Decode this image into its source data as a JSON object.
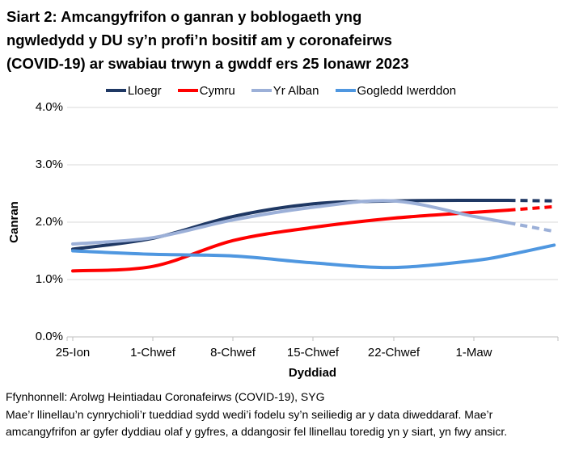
{
  "title_lines": [
    "Siart 2: Amcangyfrifon o ganran y boblogaeth yng",
    "ngwledydd y DU sy’n profi’n bositif am y coronafeirws",
    "(COVID-19) ar swabiau trwyn a gwddf ers 25 Ionawr 2023"
  ],
  "footer": {
    "source": "Ffynhonnell: Arolwg Heintiadau Coronafeirws (COVID-19), SYG",
    "note_lines": [
      "Mae’r llinellau’n cynrychioli’r tueddiad sydd wedi’i fodelu sy’n seiliedig ar y data diweddaraf. Mae’r",
      "amcangyfrifon ar gyfer dyddiau olaf y gyfres, a ddangosir fel llinellau toredig yn y siart, yn fwy ansicr."
    ]
  },
  "chart_data": {
    "type": "line",
    "title": "Siart 2: Amcangyfrifon o ganran y boblogaeth yng ngwledydd y DU sy’n profi’n bositif am y coronafeirws (COVID-19) ar swabiau trwyn a gwddf ers 25 Ionawr 2023",
    "xlabel": "Dyddiad",
    "ylabel": "Canran",
    "ylim": [
      0.0,
      4.0
    ],
    "yticks": [
      "0.0%",
      "1.0%",
      "2.0%",
      "3.0%",
      "4.0%"
    ],
    "ytick_values": [
      0,
      1,
      2,
      3,
      4
    ],
    "xticks": [
      "25-Ion",
      "1-Chwef",
      "8-Chwef",
      "15-Chwef",
      "22-Chwef",
      "1-Maw"
    ],
    "xtick_days": [
      0,
      7,
      14,
      21,
      28,
      35
    ],
    "x_days": [
      0,
      7,
      14,
      21,
      28,
      35,
      38,
      42
    ],
    "grid": "horizontal",
    "legend_position": "top",
    "grid_color": "#D9D9D9",
    "axis_color": "#BFBFBF",
    "series": [
      {
        "name": "Lloegr",
        "color": "#1F3864",
        "values": [
          1.53,
          1.72,
          2.1,
          2.32,
          2.37,
          2.38,
          2.38,
          2.37
        ],
        "dash_from_index": 6
      },
      {
        "name": "Cymru",
        "color": "#FF0000",
        "values": [
          1.15,
          1.23,
          1.68,
          1.91,
          2.07,
          2.17,
          2.21,
          2.27
        ],
        "dash_from_index": 6
      },
      {
        "name": "Yr Alban",
        "color": "#9CB0D8",
        "values": [
          1.62,
          1.73,
          2.04,
          2.26,
          2.37,
          2.1,
          1.99,
          1.84
        ],
        "dash_from_index": 6
      },
      {
        "name": "Gogledd Iwerddon",
        "color": "#4F97E0",
        "values": [
          1.5,
          1.44,
          1.41,
          1.29,
          1.21,
          1.33,
          1.43,
          1.6
        ],
        "dash_from_index": null
      }
    ]
  }
}
